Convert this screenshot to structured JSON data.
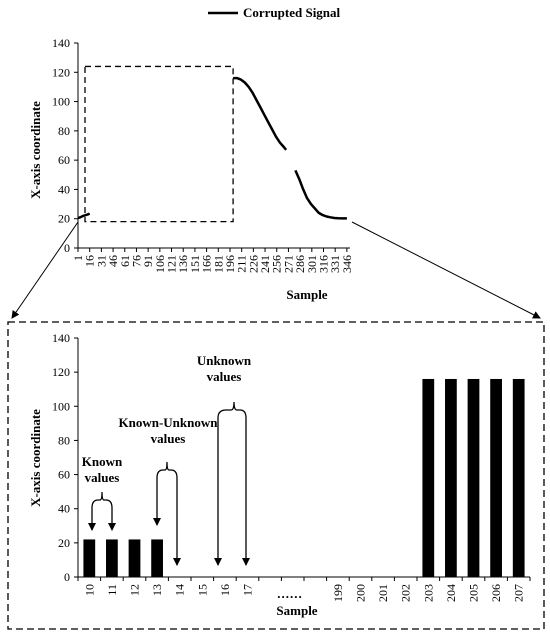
{
  "chart_data": [
    {
      "type": "line",
      "title": "",
      "legend": {
        "entries": [
          "Corrupted Signal"
        ],
        "placement": "top-center"
      },
      "xlabel": "Sample",
      "ylabel": "X-axis  coordinate",
      "ylim": [
        0,
        140
      ],
      "yticks": [
        "0",
        "20",
        "40",
        "60",
        "80",
        "100",
        "120",
        "140"
      ],
      "xticks": [
        "1",
        "16",
        "31",
        "46",
        "61",
        "76",
        "91",
        "106",
        "121",
        "136",
        "151",
        "166",
        "181",
        "196",
        "211",
        "226",
        "241",
        "256",
        "271",
        "286",
        "301",
        "316",
        "331",
        "346"
      ],
      "xlim": [
        1,
        350
      ],
      "grid": false,
      "series": [
        {
          "name": "Corrupted Signal",
          "segments": [
            {
              "x": [
                1,
                4,
                8,
                11,
                14,
                16
              ],
              "y": [
                20.5,
                21,
                22,
                22.5,
                23,
                23.5
              ]
            },
            {
              "x": [
                200,
                205,
                210,
                215,
                220,
                225,
                230,
                235,
                240,
                245,
                250,
                255,
                260,
                265,
                268
              ],
              "y": [
                116,
                116,
                115,
                113,
                110,
                106,
                101,
                96,
                91,
                86,
                81,
                76,
                72,
                69,
                67
              ]
            },
            {
              "x": [
                280,
                285,
                290,
                295,
                300,
                305,
                310,
                315,
                320,
                325,
                330,
                335,
                340,
                346
              ],
              "y": [
                53,
                47,
                40,
                34,
                30,
                27,
                24,
                22.5,
                21.5,
                21,
                20.5,
                20.3,
                20.2,
                20.2
              ]
            }
          ]
        }
      ],
      "annotations": [
        {
          "type": "dashed-box",
          "x_range": [
            1,
            200
          ],
          "y_range": [
            18,
            124
          ]
        }
      ]
    },
    {
      "type": "bar",
      "xlabel": "Sample",
      "ylabel": "X-axis  coordinate",
      "ylim": [
        0,
        140
      ],
      "yticks": [
        "0",
        "20",
        "40",
        "60",
        "80",
        "100",
        "120",
        "140"
      ],
      "categories": [
        "10",
        "11",
        "12",
        "13",
        "14",
        "15",
        "16",
        "17",
        "",
        "",
        "",
        "199",
        "200",
        "201",
        "202",
        "203",
        "204",
        "205",
        "206",
        "207"
      ],
      "gap_marker": "......",
      "values": [
        22,
        22,
        22,
        22,
        0,
        0,
        0,
        0,
        0,
        0,
        0,
        0,
        0,
        0,
        0,
        116,
        116,
        116,
        116,
        116
      ],
      "grid": false,
      "annotations": [
        {
          "text_lines": [
            "Known",
            "values"
          ],
          "arrows_at": [
            "10",
            "11"
          ]
        },
        {
          "text_lines": [
            "Known-Unknown",
            "values"
          ],
          "arrows_at": [
            "13",
            "14"
          ]
        },
        {
          "text_lines": [
            "Unknown",
            "values"
          ],
          "arrows_at": [
            "16",
            "17"
          ]
        }
      ]
    }
  ]
}
